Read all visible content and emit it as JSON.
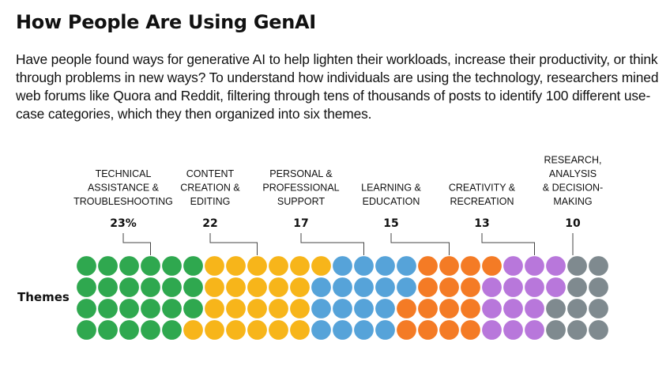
{
  "title": "How People Are Using GenAI",
  "subtitle": "Have people found ways for generative AI to help lighten their workloads, increase their productivity, or think through problems in new ways? To understand how individuals are using the technology, researchers mined web forums like Quora and Reddit, filtering through tens of thousands of posts to identify 100 different use-case categories, which they then organized into six themes.",
  "chart_data": {
    "type": "waffle",
    "row_label": "Themes",
    "rows": 4,
    "total": 100,
    "categories": [
      {
        "lines": [
          "TECHNICAL",
          "ASSISTANCE &",
          "TROUBLESHOOTING"
        ],
        "value": 23,
        "value_label": "23%",
        "color": "#2fa84f"
      },
      {
        "lines": [
          "CONTENT",
          "CREATION &",
          "EDITING"
        ],
        "value": 22,
        "value_label": "22",
        "color": "#f7b51a"
      },
      {
        "lines": [
          "PERSONAL &",
          "PROFESSIONAL",
          "SUPPORT"
        ],
        "value": 17,
        "value_label": "17",
        "color": "#56a3d9"
      },
      {
        "lines": [
          "LEARNING &",
          "EDUCATION"
        ],
        "value": 15,
        "value_label": "15",
        "color": "#f47b25"
      },
      {
        "lines": [
          "CREATIVITY &",
          "RECREATION"
        ],
        "value": 13,
        "value_label": "13",
        "color": "#b877db"
      },
      {
        "lines": [
          "RESEARCH,",
          "ANALYSIS",
          "& DECISION-",
          "MAKING"
        ],
        "value": 10,
        "value_label": "10",
        "color": "#7f8a8f"
      }
    ]
  }
}
